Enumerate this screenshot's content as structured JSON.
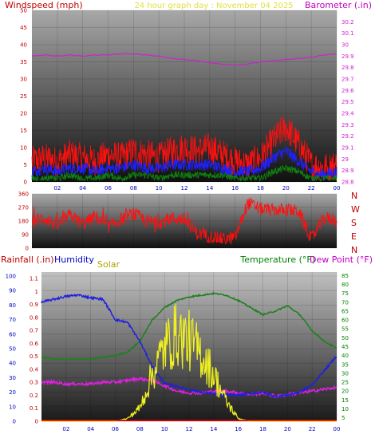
{
  "header": {
    "left_title": "Windspeed (mph)",
    "center_title": "24 hour graph day : November 04 2025",
    "right_title": "Barometer (.in)"
  },
  "colors": {
    "wind_gust": "#ff1010",
    "wind_avg": "#2020ff",
    "wind_min": "#108010",
    "baro": "#d020d0",
    "dir": "#ff1010",
    "rain": "#ff0000",
    "humidity": "#2020e0",
    "solar": "#f0f020",
    "temperature": "#208020",
    "dewpoint": "#e020e0",
    "axis_left_red": "#c00000",
    "axis_blue": "#0000c0",
    "axis_green": "#008000"
  },
  "bottom_header": {
    "rain_label": "Rainfall (.in)",
    "humidity_label": "Humidity",
    "solar_label": "Solar",
    "temp_label": "Temperature (°F)",
    "dew_label": "Dew Point (°F)"
  },
  "chart_data": [
    {
      "type": "line",
      "ylabel": "Windspeed (mph)",
      "y2label": "Barometer (.in)",
      "x_ticks": [
        "02",
        "04",
        "06",
        "08",
        "10",
        "12",
        "14",
        "16",
        "18",
        "20",
        "22",
        "00"
      ],
      "ylim": [
        0,
        50
      ],
      "y_ticks": [
        0,
        5,
        10,
        15,
        20,
        25,
        30,
        35,
        40,
        45,
        50
      ],
      "y2lim": [
        28.8,
        30.3
      ],
      "y2_ticks": [
        "28.8",
        "28.9",
        "29",
        "29.1",
        "29.2",
        "29.3",
        "29.4",
        "29.5",
        "29.6",
        "29.7",
        "29.8",
        "29.9",
        "30",
        "30.1",
        "30.2"
      ],
      "x_hours": [
        0,
        1,
        2,
        3,
        4,
        5,
        6,
        7,
        8,
        9,
        10,
        11,
        12,
        13,
        14,
        15,
        16,
        17,
        18,
        19,
        20,
        21,
        22,
        23,
        24
      ],
      "series": [
        {
          "key": "gust",
          "values": [
            6,
            7,
            6,
            8,
            7,
            6,
            8,
            7,
            9,
            8,
            7,
            9,
            10,
            9,
            10,
            8,
            6,
            5,
            7,
            12,
            16,
            11,
            5,
            4,
            5
          ]
        },
        {
          "key": "avg",
          "values": [
            3,
            4,
            3,
            4,
            4,
            3,
            4,
            4,
            5,
            4,
            4,
            5,
            5,
            5,
            5,
            4,
            3,
            3,
            4,
            7,
            9,
            6,
            3,
            2,
            3
          ]
        },
        {
          "key": "min",
          "values": [
            1,
            1,
            1,
            2,
            1,
            1,
            2,
            1,
            2,
            2,
            1,
            2,
            2,
            2,
            2,
            2,
            1,
            1,
            1,
            3,
            4,
            3,
            1,
            1,
            1
          ]
        },
        {
          "key": "baro",
          "values": [
            29.9,
            29.91,
            29.9,
            29.91,
            29.9,
            29.91,
            29.91,
            29.92,
            29.92,
            29.91,
            29.9,
            29.88,
            29.87,
            29.86,
            29.84,
            29.83,
            29.82,
            29.83,
            29.85,
            29.86,
            29.87,
            29.88,
            29.89,
            29.91,
            29.92
          ]
        }
      ]
    },
    {
      "type": "line",
      "ylim": [
        0,
        360
      ],
      "y_ticks": [
        "0",
        "90",
        "180",
        "270",
        "360"
      ],
      "right_labels": [
        "N",
        "W",
        "S",
        "E",
        "N"
      ],
      "series": [
        {
          "key": "dir",
          "values": [
            180,
            200,
            150,
            220,
            160,
            210,
            140,
            190,
            230,
            180,
            170,
            200,
            190,
            100,
            80,
            60,
            70,
            300,
            260,
            250,
            255,
            245,
            60,
            200,
            190
          ]
        }
      ]
    },
    {
      "type": "line",
      "rain_ticks": [
        "0",
        "0.1",
        "0.2",
        "0.3",
        "0.4",
        "0.5",
        "0.6",
        "0.7",
        "0.8",
        "0.9",
        "1",
        "1.1"
      ],
      "humidity_ticks": [
        "0",
        "10",
        "20",
        "30",
        "40",
        "50",
        "60",
        "70",
        "80",
        "90",
        "100"
      ],
      "temp_ticks": [
        "5",
        "10",
        "15",
        "20",
        "25",
        "30",
        "35",
        "40",
        "45",
        "50",
        "55",
        "60",
        "65",
        "70",
        "75",
        "80",
        "85"
      ],
      "x_ticks": [
        "02",
        "04",
        "06",
        "08",
        "10",
        "12",
        "14",
        "16",
        "18",
        "20",
        "22",
        "00"
      ],
      "series": [
        {
          "key": "humidity",
          "values": [
            82,
            84,
            86,
            87,
            85,
            84,
            70,
            68,
            55,
            38,
            26,
            24,
            22,
            20,
            19,
            18,
            18,
            19,
            20,
            17,
            18,
            20,
            25,
            35,
            45
          ]
        },
        {
          "key": "solar_frac",
          "values": [
            0,
            0,
            0,
            0,
            0,
            0,
            0,
            0.02,
            0.1,
            0.35,
            0.55,
            0.65,
            0.6,
            0.5,
            0.35,
            0.15,
            0.02,
            0,
            0,
            0,
            0,
            0,
            0,
            0,
            0
          ]
        },
        {
          "key": "temperature",
          "values": [
            39,
            38,
            38,
            38,
            38,
            39,
            40,
            42,
            48,
            60,
            67,
            71,
            73,
            74,
            75,
            74,
            71,
            67,
            63,
            65,
            68,
            63,
            54,
            48,
            44
          ]
        },
        {
          "key": "dewpoint",
          "values": [
            25,
            25,
            24,
            24,
            24,
            25,
            25,
            26,
            27,
            26,
            23,
            20,
            19,
            19,
            20,
            20,
            19,
            18,
            19,
            17,
            18,
            19,
            20,
            21,
            22
          ]
        },
        {
          "key": "rain",
          "values": [
            0,
            0,
            0,
            0,
            0,
            0,
            0,
            0,
            0,
            0,
            0,
            0,
            0,
            0,
            0,
            0,
            0,
            0,
            0,
            0,
            0,
            0,
            0,
            0,
            0
          ]
        }
      ]
    }
  ]
}
